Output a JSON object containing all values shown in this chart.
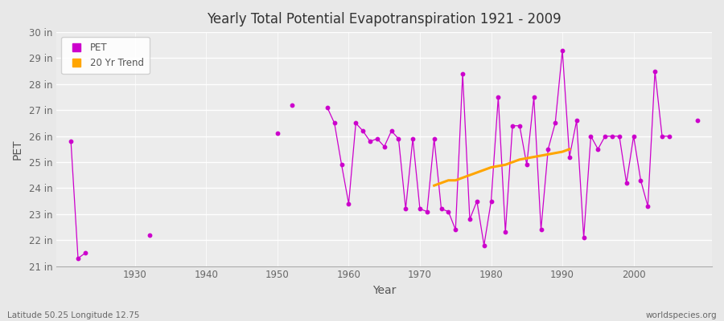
{
  "title": "Yearly Total Potential Evapotranspiration 1921 - 2009",
  "xlabel": "Year",
  "ylabel": "PET",
  "subtitle_left": "Latitude 50.25 Longitude 12.75",
  "subtitle_right": "worldspecies.org",
  "ylim": [
    21,
    30
  ],
  "ytick_labels": [
    "21 in",
    "22 in",
    "23 in",
    "24 in",
    "25 in",
    "26 in",
    "27 in",
    "28 in",
    "29 in",
    "30 in"
  ],
  "ytick_values": [
    21,
    22,
    23,
    24,
    25,
    26,
    27,
    28,
    29,
    30
  ],
  "background_color": "#e8e8e8",
  "plot_bg_color": "#ececec",
  "grid_color": "#ffffff",
  "pet_color": "#cc00cc",
  "trend_color": "#ffa500",
  "pet_data": [
    [
      1921,
      25.8
    ],
    [
      1922,
      21.3
    ],
    [
      1923,
      21.5
    ],
    [
      1932,
      22.2
    ],
    [
      1950,
      26.1
    ],
    [
      1952,
      27.2
    ],
    [
      1957,
      27.1
    ],
    [
      1958,
      26.5
    ],
    [
      1959,
      24.9
    ],
    [
      1960,
      23.4
    ],
    [
      1961,
      26.5
    ],
    [
      1962,
      26.2
    ],
    [
      1963,
      25.8
    ],
    [
      1964,
      25.9
    ],
    [
      1965,
      25.6
    ],
    [
      1966,
      26.2
    ],
    [
      1967,
      25.9
    ],
    [
      1968,
      23.2
    ],
    [
      1969,
      25.9
    ],
    [
      1970,
      23.2
    ],
    [
      1971,
      23.1
    ],
    [
      1972,
      25.9
    ],
    [
      1973,
      23.2
    ],
    [
      1974,
      23.1
    ],
    [
      1975,
      22.4
    ],
    [
      1976,
      28.4
    ],
    [
      1977,
      22.8
    ],
    [
      1978,
      23.5
    ],
    [
      1979,
      21.8
    ],
    [
      1980,
      23.5
    ],
    [
      1981,
      27.5
    ],
    [
      1982,
      22.3
    ],
    [
      1983,
      26.4
    ],
    [
      1984,
      26.4
    ],
    [
      1985,
      24.9
    ],
    [
      1986,
      27.5
    ],
    [
      1987,
      22.4
    ],
    [
      1988,
      25.5
    ],
    [
      1989,
      26.5
    ],
    [
      1990,
      29.3
    ],
    [
      1991,
      25.2
    ],
    [
      1992,
      26.6
    ],
    [
      1993,
      22.1
    ],
    [
      1994,
      26.0
    ],
    [
      1995,
      25.5
    ],
    [
      1996,
      26.0
    ],
    [
      1997,
      26.0
    ],
    [
      1998,
      26.0
    ],
    [
      1999,
      24.2
    ],
    [
      2000,
      26.0
    ],
    [
      2001,
      24.3
    ],
    [
      2002,
      23.3
    ],
    [
      2003,
      28.5
    ],
    [
      2004,
      26.0
    ],
    [
      2005,
      26.0
    ],
    [
      2009,
      26.6
    ]
  ],
  "connected_from": 1957,
  "trend_years": [
    1972,
    1973,
    1974,
    1975,
    1976,
    1977,
    1978,
    1979,
    1980,
    1981,
    1982,
    1983,
    1984,
    1985,
    1986,
    1987,
    1988,
    1989,
    1990,
    1991
  ],
  "trend_values": [
    24.1,
    24.2,
    24.3,
    24.3,
    24.4,
    24.5,
    24.6,
    24.7,
    24.8,
    24.85,
    24.9,
    25.0,
    25.1,
    25.15,
    25.2,
    25.25,
    25.3,
    25.35,
    25.4,
    25.5
  ],
  "legend_pet_label": "PET",
  "legend_trend_label": "20 Yr Trend"
}
